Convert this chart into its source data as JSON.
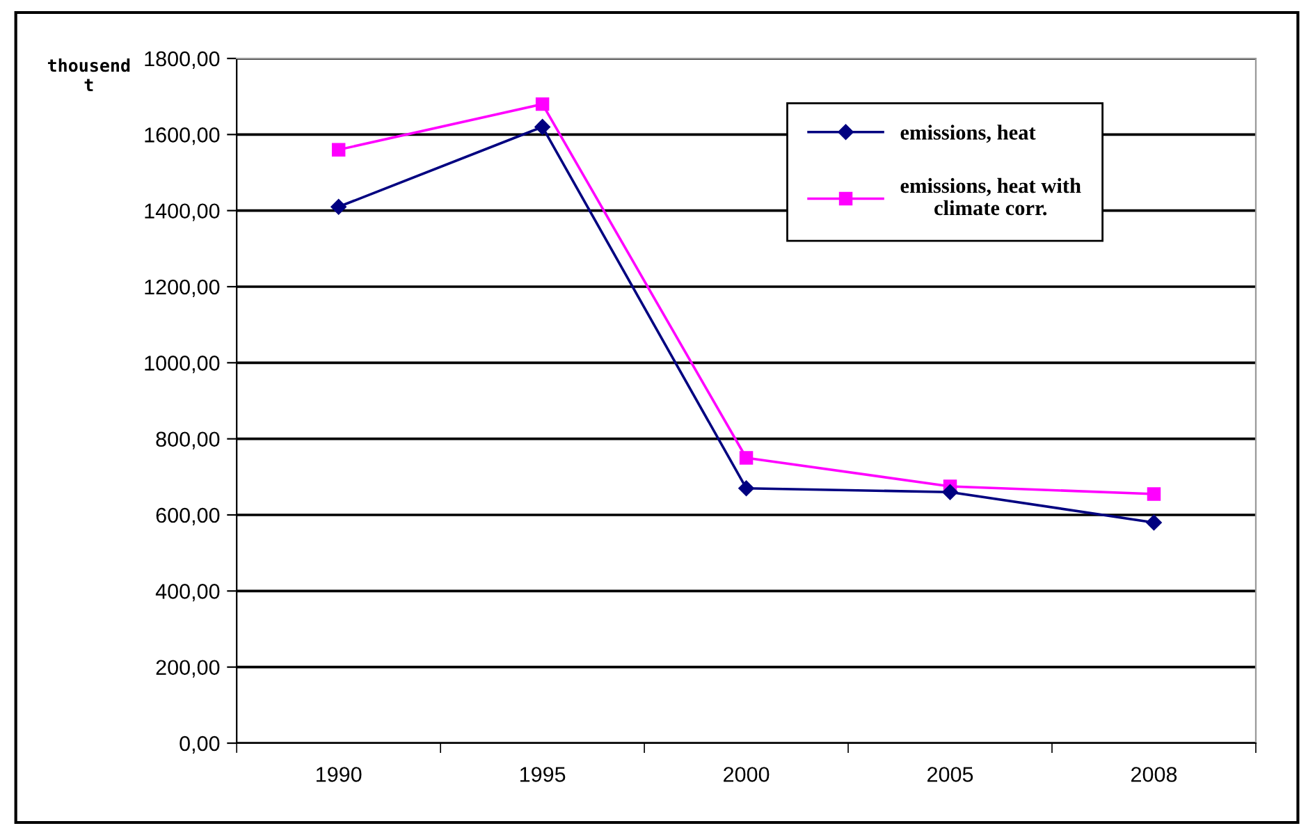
{
  "chart_data": {
    "type": "line",
    "ylabel": "thousend\nt",
    "categories": [
      "1990",
      "1995",
      "2000",
      "2005",
      "2008"
    ],
    "series": [
      {
        "name": "emissions, heat",
        "color": "#000080",
        "marker": "diamond",
        "values": [
          1410,
          1620,
          670,
          660,
          580
        ]
      },
      {
        "name": "emissions, heat with\nclimate corr.",
        "color": "#ff00ff",
        "marker": "square",
        "values": [
          1560,
          1680,
          750,
          675,
          655
        ]
      }
    ],
    "ylim": [
      0,
      1800
    ],
    "yticks": [
      {
        "value": 0,
        "label": "0,00"
      },
      {
        "value": 200,
        "label": "200,00"
      },
      {
        "value": 400,
        "label": "400,00"
      },
      {
        "value": 600,
        "label": "600,00"
      },
      {
        "value": 800,
        "label": "800,00"
      },
      {
        "value": 1000,
        "label": "1000,00"
      },
      {
        "value": 1200,
        "label": "1200,00"
      },
      {
        "value": 1400,
        "label": "1400,00"
      },
      {
        "value": 1600,
        "label": "1600,00"
      },
      {
        "value": 1800,
        "label": "1800,00"
      }
    ],
    "grid": "y",
    "legend": "top right",
    "line_style": "solid"
  }
}
